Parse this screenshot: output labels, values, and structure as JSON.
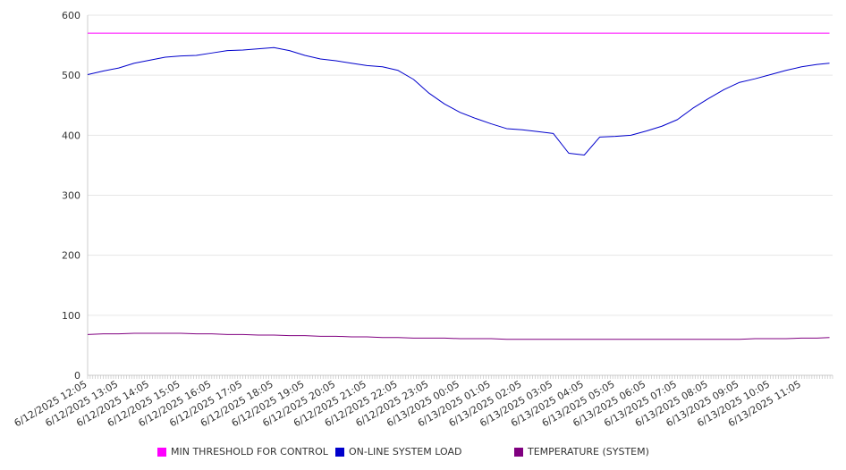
{
  "chart_data": {
    "type": "line",
    "title": "",
    "xlabel": "",
    "ylabel": "",
    "ylim": [
      0,
      600
    ],
    "yticks": [
      0,
      100,
      200,
      300,
      400,
      500,
      600
    ],
    "grid": true,
    "legend_position": "bottom",
    "x_tick_labels": [
      "6/12/2025 12:05",
      "6/12/2025 13:05",
      "6/12/2025 14:05",
      "6/12/2025 15:05",
      "6/12/2025 16:05",
      "6/12/2025 17:05",
      "6/12/2025 18:05",
      "6/12/2025 19:05",
      "6/12/2025 20:05",
      "6/12/2025 21:05",
      "6/12/2025 22:05",
      "6/12/2025 23:05",
      "6/13/2025 00:05",
      "6/13/2025 01:05",
      "6/13/2025 02:05",
      "6/13/2025 03:05",
      "6/13/2025 04:05",
      "6/13/2025 05:05",
      "6/13/2025 06:05",
      "6/13/2025 07:05",
      "6/13/2025 08:05",
      "6/13/2025 09:05",
      "6/13/2025 10:05",
      "6/13/2025 11:05"
    ],
    "x_hours": [
      0,
      0.5,
      1,
      1.5,
      2,
      2.5,
      3,
      3.5,
      4,
      4.5,
      5,
      5.5,
      6,
      6.5,
      7,
      7.5,
      8,
      8.5,
      9,
      9.5,
      10,
      10.5,
      11,
      11.5,
      12,
      12.5,
      13,
      13.5,
      14,
      14.5,
      15,
      15.5,
      16,
      16.5,
      17,
      17.5,
      18,
      18.5,
      19,
      19.5,
      20,
      20.5,
      21,
      21.5,
      22,
      22.5,
      23,
      23.5,
      23.9
    ],
    "series": [
      {
        "name": "MIN THRESHOLD FOR CONTROL",
        "color": "#ff00ff",
        "values": [
          570,
          570,
          570,
          570,
          570,
          570,
          570,
          570,
          570,
          570,
          570,
          570,
          570,
          570,
          570,
          570,
          570,
          570,
          570,
          570,
          570,
          570,
          570,
          570,
          570,
          570,
          570,
          570,
          570,
          570,
          570,
          570,
          570,
          570,
          570,
          570,
          570,
          570,
          570,
          570,
          570,
          570,
          570,
          570,
          570,
          570,
          570,
          570,
          570
        ]
      },
      {
        "name": "ON-LINE SYSTEM LOAD",
        "color": "#0000cc",
        "values": [
          501,
          507,
          512,
          520,
          525,
          530,
          532,
          533,
          537,
          541,
          542,
          544,
          546,
          541,
          533,
          527,
          524,
          520,
          516,
          514,
          508,
          493,
          470,
          452,
          438,
          428,
          419,
          411,
          409,
          406,
          403,
          370,
          367,
          397,
          398,
          400,
          407,
          415,
          426,
          445,
          461,
          476,
          488,
          494,
          501,
          508,
          514,
          518,
          520
        ]
      },
      {
        "name": "TEMPERATURE (SYSTEM)",
        "color": "#800080",
        "values": [
          68,
          69,
          69,
          70,
          70,
          70,
          70,
          69,
          69,
          68,
          68,
          67,
          67,
          66,
          66,
          65,
          65,
          64,
          64,
          63,
          63,
          62,
          62,
          62,
          61,
          61,
          61,
          60,
          60,
          60,
          60,
          60,
          60,
          60,
          60,
          60,
          60,
          60,
          60,
          60,
          60,
          60,
          60,
          61,
          61,
          61,
          62,
          62,
          63
        ]
      }
    ]
  }
}
